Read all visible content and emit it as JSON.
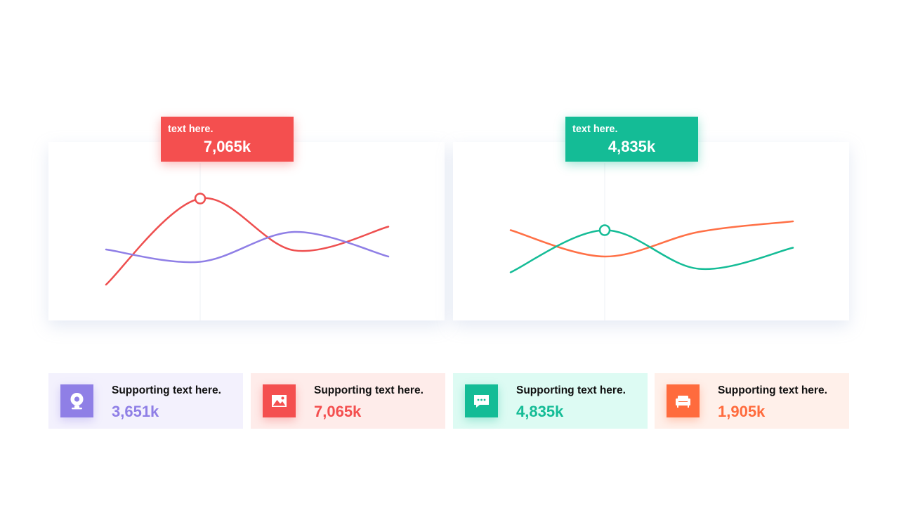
{
  "callouts": [
    {
      "label": "text here.",
      "value": "7,065k",
      "color": "#f44f4f"
    },
    {
      "label": "text here.",
      "value": "4,835k",
      "color": "#14bc96"
    }
  ],
  "chart_data": [
    {
      "type": "line",
      "series": [
        {
          "color": "#ee4f4f",
          "values": [
            0,
            0.98,
            0.39,
            0.66
          ]
        },
        {
          "color": "#8f7fe6",
          "values": [
            0.4,
            0.26,
            0.6,
            0.32
          ]
        }
      ],
      "highlight": {
        "series_index": 0,
        "point_index": 1
      },
      "ylim": [
        0,
        1
      ],
      "grid": false
    },
    {
      "type": "line",
      "series": [
        {
          "color": "#ff7046",
          "values": [
            0.62,
            0.32,
            0.6,
            0.72
          ]
        },
        {
          "color": "#14bc96",
          "values": [
            0.14,
            0.62,
            0.18,
            0.42
          ]
        }
      ],
      "highlight": {
        "series_index": 1,
        "point_index": 1
      },
      "ylim": [
        0,
        1
      ],
      "grid": false
    }
  ],
  "cards": [
    {
      "icon": "webcam-icon",
      "text": "Supporting text here.",
      "value": "3,651k",
      "accent": "#8f7fe6",
      "bg": "#f3f1fd"
    },
    {
      "icon": "image-icon",
      "text": "Supporting text here.",
      "value": "7,065k",
      "accent": "#f44f4f",
      "bg": "#feecea"
    },
    {
      "icon": "chat-icon",
      "text": "Supporting text here.",
      "value": "4,835k",
      "accent": "#14bc96",
      "bg": "#ddfbf3"
    },
    {
      "icon": "sofa-icon",
      "text": "Supporting text here.",
      "value": "1,905k",
      "accent": "#ff6b3d",
      "bg": "#fff0ea"
    }
  ]
}
